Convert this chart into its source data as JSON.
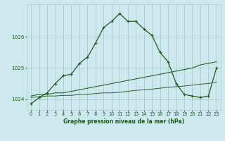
{
  "title": "Graphe pression niveau de la mer (hPa)",
  "bg_color": "#cde8ee",
  "grid_color": "#aacccc",
  "line_color": "#1a5c1a",
  "xlim": [
    -0.5,
    23.5
  ],
  "ylim": [
    1023.65,
    1027.05
  ],
  "yticks": [
    1024,
    1025,
    1026
  ],
  "xticks": [
    0,
    1,
    2,
    3,
    4,
    5,
    6,
    7,
    8,
    9,
    10,
    11,
    12,
    13,
    14,
    15,
    16,
    17,
    18,
    19,
    20,
    21,
    22,
    23
  ],
  "series1_x": [
    0,
    1,
    2,
    3,
    4,
    5,
    6,
    7,
    8,
    9,
    10,
    11,
    12,
    13,
    14,
    15,
    16,
    17,
    18,
    19,
    20,
    21,
    22,
    23
  ],
  "series1_y": [
    1023.85,
    1024.05,
    1024.2,
    1024.5,
    1024.75,
    1024.8,
    1025.15,
    1025.35,
    1025.8,
    1026.3,
    1026.5,
    1026.75,
    1026.5,
    1026.5,
    1026.25,
    1026.05,
    1025.5,
    1025.2,
    1024.5,
    1024.15,
    1024.1,
    1024.05,
    1024.1,
    1025.0
  ],
  "series2_x": [
    0,
    1,
    2,
    3,
    4,
    5,
    6,
    7,
    8,
    9,
    10,
    11,
    12,
    13,
    14,
    15,
    16,
    17,
    18,
    19,
    20,
    21,
    22,
    23
  ],
  "series2_y": [
    1024.1,
    1024.15,
    1024.15,
    1024.2,
    1024.2,
    1024.25,
    1024.3,
    1024.35,
    1024.4,
    1024.45,
    1024.5,
    1024.55,
    1024.6,
    1024.65,
    1024.7,
    1024.75,
    1024.8,
    1024.85,
    1024.9,
    1024.95,
    1025.0,
    1025.1,
    1025.15,
    1025.2
  ],
  "series3_x": [
    0,
    1,
    2,
    3,
    4,
    5,
    6,
    7,
    8,
    9,
    10,
    11,
    12,
    13,
    14,
    15,
    16,
    17,
    18,
    19,
    20,
    21,
    22,
    23
  ],
  "series3_y": [
    1024.05,
    1024.08,
    1024.1,
    1024.1,
    1024.12,
    1024.12,
    1024.15,
    1024.15,
    1024.18,
    1024.2,
    1024.2,
    1024.22,
    1024.25,
    1024.28,
    1024.3,
    1024.32,
    1024.35,
    1024.38,
    1024.4,
    1024.42,
    1024.45,
    1024.48,
    1024.5,
    1024.55
  ],
  "xlabel_fontsize": 5.5,
  "tick_fontsize": 4.8,
  "ytick_fontsize": 5.2
}
